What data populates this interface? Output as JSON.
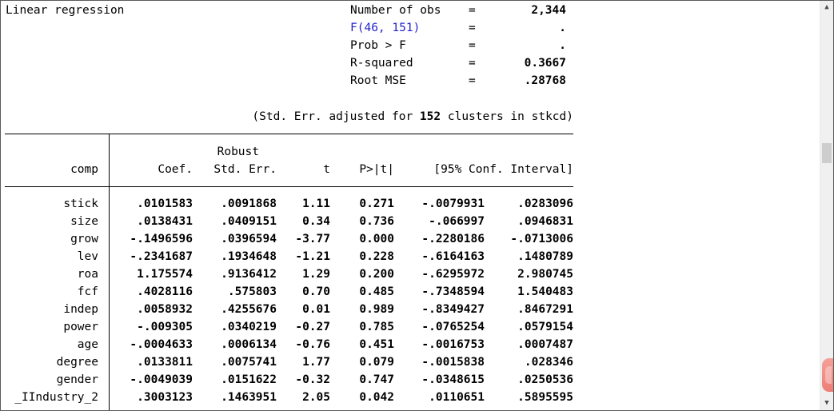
{
  "window": {
    "title": "Linear regression"
  },
  "stats": {
    "lines": [
      {
        "label": "Number of obs",
        "eq": "=",
        "value": "2,344",
        "link": false
      },
      {
        "label": "F(46, 151)",
        "eq": "=",
        "value": ".",
        "link": true
      },
      {
        "label": "Prob > F",
        "eq": "=",
        "value": ".",
        "link": false
      },
      {
        "label": "R-squared",
        "eq": "=",
        "value": "0.3667",
        "link": false
      },
      {
        "label": "Root MSE",
        "eq": "=",
        "value": ".28768",
        "link": false
      }
    ]
  },
  "note": {
    "prefix": "(Std. Err. adjusted for ",
    "clusters": "152",
    "suffix": " clusters in stkcd)"
  },
  "table": {
    "header": {
      "robust": "Robust",
      "depvar": "comp",
      "coef": "Coef.",
      "stderr": "Std. Err.",
      "t": "t",
      "p": "P>|t|",
      "ci": "[95% Conf. Interval]"
    },
    "rows": [
      {
        "name": "stick",
        "cells": [
          ".0101583",
          ".0091868",
          "1.11",
          "0.271",
          "-.0079931",
          ".0283096"
        ]
      },
      {
        "name": "size",
        "cells": [
          ".0138431",
          ".0409151",
          "0.34",
          "0.736",
          "-.066997",
          ".0946831"
        ]
      },
      {
        "name": "grow",
        "cells": [
          "-.1496596",
          ".0396594",
          "-3.77",
          "0.000",
          "-.2280186",
          "-.0713006"
        ]
      },
      {
        "name": "lev",
        "cells": [
          "-.2341687",
          ".1934648",
          "-1.21",
          "0.228",
          "-.6164163",
          ".1480789"
        ]
      },
      {
        "name": "roa",
        "cells": [
          "1.175574",
          ".9136412",
          "1.29",
          "0.200",
          "-.6295972",
          "2.980745"
        ]
      },
      {
        "name": "fcf",
        "cells": [
          ".4028116",
          ".575803",
          "0.70",
          "0.485",
          "-.7348594",
          "1.540483"
        ]
      },
      {
        "name": "indep",
        "cells": [
          ".0058932",
          ".4255676",
          "0.01",
          "0.989",
          "-.8349427",
          ".8467291"
        ]
      },
      {
        "name": "power",
        "cells": [
          "-.009305",
          ".0340219",
          "-0.27",
          "0.785",
          "-.0765254",
          ".0579154"
        ]
      },
      {
        "name": "age",
        "cells": [
          "-.0004633",
          ".0006134",
          "-0.76",
          "0.451",
          "-.0016753",
          ".0007487"
        ]
      },
      {
        "name": "degree",
        "cells": [
          ".0133811",
          ".0075741",
          "1.77",
          "0.079",
          "-.0015838",
          ".028346"
        ]
      },
      {
        "name": "gender",
        "cells": [
          "-.0049039",
          ".0151622",
          "-0.32",
          "0.747",
          "-.0348615",
          ".0250536"
        ]
      },
      {
        "name": "_IIndustry_2",
        "cells": [
          ".3003123",
          ".1463951",
          "2.05",
          "0.042",
          ".0110651",
          ".5895595"
        ]
      }
    ]
  },
  "icons": {
    "scroll_up": "▲",
    "scroll_down": "▼"
  },
  "colors": {
    "link_blue": "#2424cd",
    "rule": "#000000",
    "scrollbar_track": "#f0f0f0",
    "scrollbar_thumb": "#cdcdcd",
    "overlay_pink": "#ee7e76"
  }
}
